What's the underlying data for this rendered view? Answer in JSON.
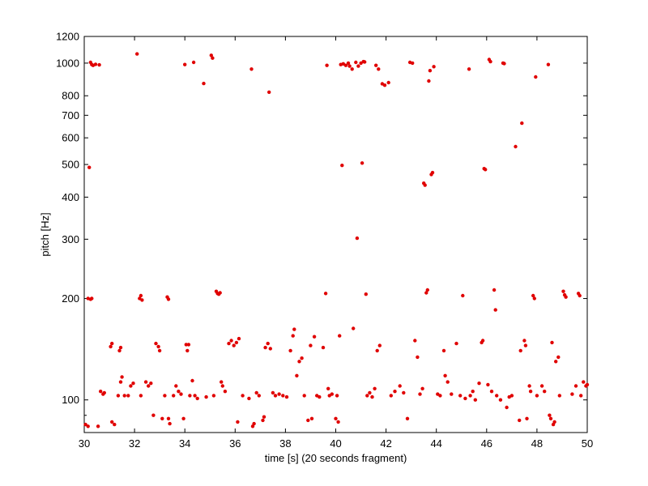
{
  "chart_data": {
    "type": "scatter",
    "title": "",
    "xlabel": "time [s] (20 seconds fragment)",
    "ylabel": "pitch [Hz]",
    "xlim": [
      30,
      50
    ],
    "ylim": [
      80,
      1200
    ],
    "yscale": "log",
    "grid": false,
    "marker_color": "#e00000",
    "x_ticks": [
      30,
      32,
      34,
      36,
      38,
      40,
      42,
      44,
      46,
      48,
      50
    ],
    "x_tick_labels": [
      "30",
      "32",
      "34",
      "36",
      "38",
      "40",
      "42",
      "44",
      "46",
      "48",
      "50"
    ],
    "y_ticks": [
      100,
      200,
      300,
      400,
      500,
      600,
      700,
      800,
      1000,
      1200
    ],
    "y_tick_labels": [
      "100",
      "200",
      "300",
      "400",
      "500",
      "600",
      "700",
      "800",
      "1000",
      "1200"
    ],
    "points": [
      [
        30.05,
        84.5
      ],
      [
        30.15,
        83.5
      ],
      [
        30.2,
        490
      ],
      [
        30.15,
        200
      ],
      [
        30.25,
        199
      ],
      [
        30.3,
        200
      ],
      [
        30.25,
        1005
      ],
      [
        30.3,
        990
      ],
      [
        30.35,
        985
      ],
      [
        30.45,
        992
      ],
      [
        30.6,
        988
      ],
      [
        30.55,
        83.5
      ],
      [
        30.65,
        106
      ],
      [
        30.75,
        104
      ],
      [
        30.8,
        105
      ],
      [
        31.05,
        144
      ],
      [
        31.1,
        147
      ],
      [
        31.1,
        86
      ],
      [
        31.2,
        84.5
      ],
      [
        31.35,
        103
      ],
      [
        31.4,
        140
      ],
      [
        31.45,
        143
      ],
      [
        31.45,
        113
      ],
      [
        31.5,
        117
      ],
      [
        31.6,
        103
      ],
      [
        31.75,
        103
      ],
      [
        31.85,
        110
      ],
      [
        31.95,
        112
      ],
      [
        32.1,
        1065
      ],
      [
        32.2,
        200
      ],
      [
        32.25,
        204
      ],
      [
        32.3,
        198
      ],
      [
        32.25,
        103
      ],
      [
        32.45,
        113
      ],
      [
        32.55,
        110
      ],
      [
        32.65,
        112
      ],
      [
        32.75,
        90
      ],
      [
        32.85,
        147
      ],
      [
        32.95,
        144
      ],
      [
        33.0,
        140
      ],
      [
        33.1,
        88
      ],
      [
        33.2,
        103
      ],
      [
        33.3,
        202
      ],
      [
        33.35,
        199
      ],
      [
        33.35,
        88
      ],
      [
        33.4,
        85
      ],
      [
        33.55,
        103
      ],
      [
        33.65,
        110
      ],
      [
        33.75,
        106
      ],
      [
        33.85,
        104
      ],
      [
        33.95,
        88
      ],
      [
        34.0,
        990
      ],
      [
        34.05,
        146
      ],
      [
        34.1,
        140
      ],
      [
        34.15,
        146
      ],
      [
        34.2,
        103
      ],
      [
        34.3,
        114
      ],
      [
        34.35,
        1005
      ],
      [
        34.4,
        103
      ],
      [
        34.5,
        101
      ],
      [
        34.75,
        870
      ],
      [
        34.85,
        102
      ],
      [
        35.05,
        1055
      ],
      [
        35.1,
        1035
      ],
      [
        35.15,
        103
      ],
      [
        35.25,
        210
      ],
      [
        35.3,
        207
      ],
      [
        35.35,
        206
      ],
      [
        35.4,
        208
      ],
      [
        35.45,
        113
      ],
      [
        35.5,
        110
      ],
      [
        35.6,
        106
      ],
      [
        35.75,
        147
      ],
      [
        35.85,
        150
      ],
      [
        35.95,
        145
      ],
      [
        36.05,
        148
      ],
      [
        36.1,
        86
      ],
      [
        36.15,
        152
      ],
      [
        36.3,
        103
      ],
      [
        36.55,
        101
      ],
      [
        36.65,
        960
      ],
      [
        36.7,
        83.5
      ],
      [
        36.75,
        85
      ],
      [
        36.85,
        105
      ],
      [
        36.95,
        103
      ],
      [
        37.1,
        87
      ],
      [
        37.15,
        89
      ],
      [
        37.2,
        143
      ],
      [
        37.3,
        147
      ],
      [
        37.35,
        820
      ],
      [
        37.4,
        142
      ],
      [
        37.5,
        105
      ],
      [
        37.6,
        103
      ],
      [
        37.75,
        104
      ],
      [
        37.9,
        103
      ],
      [
        38.05,
        102
      ],
      [
        38.2,
        140
      ],
      [
        38.3,
        155
      ],
      [
        38.35,
        162
      ],
      [
        38.45,
        118
      ],
      [
        38.55,
        130
      ],
      [
        38.65,
        133
      ],
      [
        38.75,
        103
      ],
      [
        38.9,
        87
      ],
      [
        39.0,
        145
      ],
      [
        39.05,
        88
      ],
      [
        39.15,
        154
      ],
      [
        39.25,
        103
      ],
      [
        39.35,
        102
      ],
      [
        39.5,
        143
      ],
      [
        39.6,
        207
      ],
      [
        39.65,
        985
      ],
      [
        39.7,
        108
      ],
      [
        39.75,
        103
      ],
      [
        39.85,
        104
      ],
      [
        40.0,
        88
      ],
      [
        40.05,
        103
      ],
      [
        40.1,
        86
      ],
      [
        40.15,
        155
      ],
      [
        40.2,
        990
      ],
      [
        40.25,
        497
      ],
      [
        40.3,
        995
      ],
      [
        40.4,
        985
      ],
      [
        40.5,
        1000
      ],
      [
        40.55,
        980
      ],
      [
        40.65,
        960
      ],
      [
        40.7,
        163
      ],
      [
        40.8,
        1005
      ],
      [
        40.85,
        302
      ],
      [
        40.9,
        980
      ],
      [
        41.0,
        1000
      ],
      [
        41.05,
        505
      ],
      [
        41.1,
        1010
      ],
      [
        41.15,
        1008
      ],
      [
        41.2,
        206
      ],
      [
        41.25,
        103
      ],
      [
        41.35,
        105
      ],
      [
        41.45,
        102
      ],
      [
        41.55,
        108
      ],
      [
        41.6,
        985
      ],
      [
        41.65,
        140
      ],
      [
        41.7,
        960
      ],
      [
        41.75,
        145
      ],
      [
        41.85,
        868
      ],
      [
        41.95,
        860
      ],
      [
        42.1,
        875
      ],
      [
        42.2,
        103
      ],
      [
        42.35,
        106
      ],
      [
        42.55,
        110
      ],
      [
        42.7,
        105
      ],
      [
        42.85,
        88
      ],
      [
        42.95,
        1005
      ],
      [
        43.05,
        1000
      ],
      [
        43.15,
        150
      ],
      [
        43.25,
        134
      ],
      [
        43.35,
        104
      ],
      [
        43.45,
        108
      ],
      [
        43.5,
        440
      ],
      [
        43.55,
        434
      ],
      [
        43.6,
        208
      ],
      [
        43.65,
        212
      ],
      [
        43.7,
        885
      ],
      [
        43.75,
        950
      ],
      [
        43.8,
        467
      ],
      [
        43.85,
        473
      ],
      [
        43.9,
        976
      ],
      [
        44.05,
        104
      ],
      [
        44.15,
        103
      ],
      [
        44.3,
        140
      ],
      [
        44.35,
        118
      ],
      [
        44.45,
        113
      ],
      [
        44.6,
        104
      ],
      [
        44.8,
        147
      ],
      [
        44.95,
        103
      ],
      [
        45.05,
        204
      ],
      [
        45.15,
        101
      ],
      [
        45.3,
        960
      ],
      [
        45.35,
        103
      ],
      [
        45.45,
        106
      ],
      [
        45.55,
        100
      ],
      [
        45.7,
        112
      ],
      [
        45.8,
        148
      ],
      [
        45.85,
        150
      ],
      [
        45.9,
        486
      ],
      [
        45.95,
        483
      ],
      [
        46.05,
        111
      ],
      [
        46.1,
        1025
      ],
      [
        46.15,
        1010
      ],
      [
        46.2,
        106
      ],
      [
        46.3,
        212
      ],
      [
        46.35,
        185
      ],
      [
        46.4,
        103
      ],
      [
        46.55,
        100
      ],
      [
        46.65,
        1000
      ],
      [
        46.7,
        997
      ],
      [
        46.8,
        95
      ],
      [
        46.9,
        102
      ],
      [
        47.0,
        103
      ],
      [
        47.15,
        565
      ],
      [
        47.3,
        87
      ],
      [
        47.35,
        140
      ],
      [
        47.4,
        663
      ],
      [
        47.5,
        150
      ],
      [
        47.55,
        145
      ],
      [
        47.6,
        88
      ],
      [
        47.7,
        110
      ],
      [
        47.75,
        106
      ],
      [
        47.85,
        204
      ],
      [
        47.9,
        200
      ],
      [
        47.95,
        910
      ],
      [
        48.0,
        103
      ],
      [
        48.2,
        110
      ],
      [
        48.3,
        106
      ],
      [
        48.45,
        990
      ],
      [
        48.5,
        90
      ],
      [
        48.55,
        88
      ],
      [
        48.6,
        148
      ],
      [
        48.65,
        84.5
      ],
      [
        48.7,
        86
      ],
      [
        48.75,
        130
      ],
      [
        48.85,
        134
      ],
      [
        48.9,
        103
      ],
      [
        49.05,
        210
      ],
      [
        49.1,
        205
      ],
      [
        49.15,
        202
      ],
      [
        49.4,
        104
      ],
      [
        49.55,
        110
      ],
      [
        49.65,
        207
      ],
      [
        49.7,
        204
      ],
      [
        49.75,
        103
      ],
      [
        49.85,
        113
      ],
      [
        49.95,
        110
      ],
      [
        50.0,
        111
      ]
    ]
  }
}
